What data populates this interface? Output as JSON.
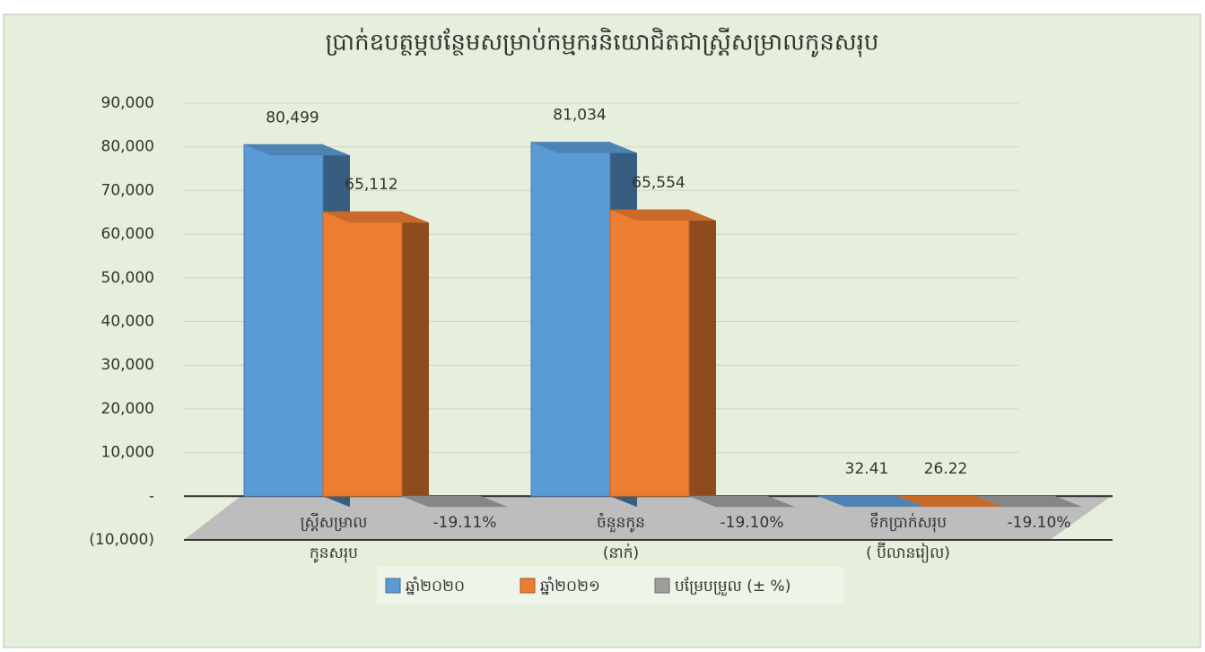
{
  "chart_data": {
    "type": "bar3d",
    "title": "ប្រាក់ឧបត្ថម្ភបន្ថែមសម្រាប់កម្មករនិយោជិតជាស្ត្រីសម្រាលកូនសរុប",
    "categories": [
      [
        "ស្ត្រីសម្រាល",
        "កូនសរុប"
      ],
      [
        "ចំនួនកូន",
        "(នាក់)"
      ],
      [
        "ទឹកប្រាក់សរុប",
        "( ប៊ីលានរៀល)"
      ]
    ],
    "series": [
      {
        "name": "ឆ្នាំ២០២០",
        "color": "#5b9bd5",
        "values": [
          80499,
          81034,
          32.41
        ],
        "value_labels": [
          "80,499",
          "81,034",
          "32.41"
        ]
      },
      {
        "name": "ឆ្នាំ២០២១",
        "color": "#ed7d31",
        "values": [
          65112,
          65554,
          26.22
        ],
        "value_labels": [
          "65,112",
          "65,554",
          "26.22"
        ]
      },
      {
        "name": "បម្រែបម្រួល (± %)",
        "color": "#9e9e9e",
        "values": [
          -19.11,
          -19.1,
          -19.1
        ],
        "value_labels": [
          "-19.11%",
          "-19.10%",
          "-19.10%"
        ]
      }
    ],
    "ylim": [
      -10000,
      90000
    ],
    "yticks": [
      {
        "value": -10000,
        "label": "(10,000)"
      },
      {
        "value": 0,
        "label": "-"
      },
      {
        "value": 10000,
        "label": "10,000"
      },
      {
        "value": 20000,
        "label": "20,000"
      },
      {
        "value": 30000,
        "label": "30,000"
      },
      {
        "value": 40000,
        "label": "40,000"
      },
      {
        "value": 50000,
        "label": "50,000"
      },
      {
        "value": 60000,
        "label": "60,000"
      },
      {
        "value": 70000,
        "label": "70,000"
      },
      {
        "value": 80000,
        "label": "80,000"
      },
      {
        "value": 90000,
        "label": "90,000"
      }
    ],
    "grid": true,
    "legend": "bottom"
  }
}
